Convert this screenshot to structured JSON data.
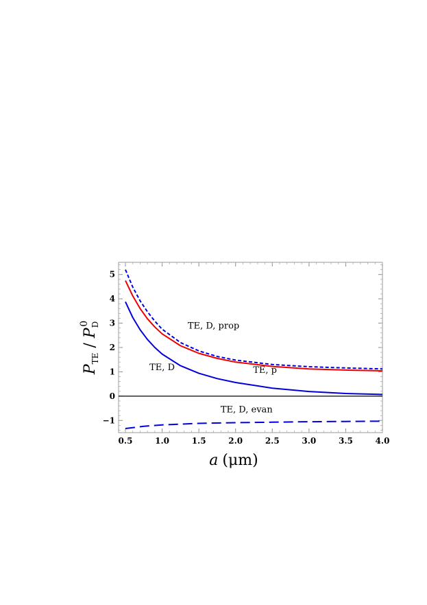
{
  "chart_data": {
    "type": "line",
    "xlabel": {
      "var": "a",
      "unit": "(μm)"
    },
    "ylabel": {
      "num": "P",
      "num_sub": "TE",
      "den": "P",
      "den_sub": "D",
      "den_sup": "0"
    },
    "xlim": [
      0.45,
      4.0
    ],
    "ylim": [
      -1.5,
      5.5
    ],
    "x_ticks": [
      "0.5",
      "1.0",
      "1.5",
      "2.0",
      "2.5",
      "3.0",
      "3.5",
      "4.0"
    ],
    "y_ticks": [
      "−1",
      "0",
      "1",
      "2",
      "3",
      "4",
      "5"
    ],
    "grid": false,
    "series": [
      {
        "name": "TE, D, prop",
        "color": "#0000dd",
        "dash": "short",
        "x": [
          0.5,
          0.6,
          0.7,
          0.8,
          0.9,
          1.0,
          1.25,
          1.5,
          1.75,
          2.0,
          2.5,
          3.0,
          3.5,
          4.0
        ],
        "y": [
          5.2,
          4.48,
          3.92,
          3.47,
          3.08,
          2.75,
          2.2,
          1.86,
          1.63,
          1.48,
          1.3,
          1.21,
          1.16,
          1.12
        ]
      },
      {
        "name": "TE, p",
        "color": "#ee0000",
        "dash": "solid",
        "x": [
          0.5,
          0.6,
          0.7,
          0.8,
          0.9,
          1.0,
          1.25,
          1.5,
          1.75,
          2.0,
          2.5,
          3.0,
          3.5,
          4.0
        ],
        "y": [
          4.75,
          4.12,
          3.6,
          3.18,
          2.84,
          2.56,
          2.07,
          1.76,
          1.55,
          1.4,
          1.22,
          1.12,
          1.07,
          1.04
        ]
      },
      {
        "name": "TE, D",
        "color": "#0000dd",
        "dash": "solid",
        "x": [
          0.5,
          0.6,
          0.7,
          0.8,
          0.9,
          1.0,
          1.25,
          1.5,
          1.75,
          2.0,
          2.5,
          3.0,
          3.5,
          4.0
        ],
        "y": [
          3.88,
          3.23,
          2.73,
          2.33,
          2.0,
          1.73,
          1.25,
          0.94,
          0.72,
          0.56,
          0.33,
          0.19,
          0.11,
          0.07
        ]
      },
      {
        "name": "TE, D, evan",
        "color": "#0000dd",
        "dash": "long",
        "x": [
          0.5,
          0.75,
          1.0,
          1.5,
          2.0,
          2.5,
          3.0,
          3.5,
          4.0
        ],
        "y": [
          -1.33,
          -1.24,
          -1.18,
          -1.12,
          -1.09,
          -1.07,
          -1.05,
          -1.04,
          -1.03
        ]
      },
      {
        "name": "",
        "color": "#000000",
        "dash": "solid",
        "x": [
          0.45,
          4.0
        ],
        "y": [
          0,
          0
        ]
      }
    ],
    "annotations": [
      {
        "text": "TE, D, prop",
        "x": 1.7,
        "y": 2.78
      },
      {
        "text": "TE, p",
        "x": 2.4,
        "y": 0.95
      },
      {
        "text": "TE, D",
        "x": 1.0,
        "y": 1.07
      },
      {
        "text": "TE, D, evan",
        "x": 2.15,
        "y": -0.67
      }
    ]
  }
}
